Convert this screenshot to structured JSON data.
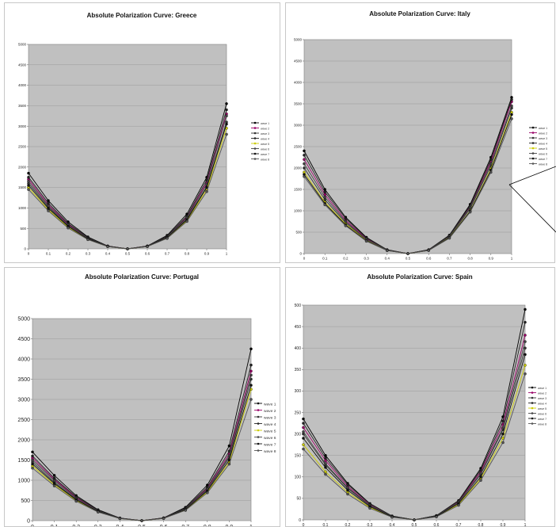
{
  "chart_data": [
    {
      "type": "line",
      "title": "Absolute Polarization Curve: Greece",
      "xlabel": "",
      "ylabel": "",
      "xlim": [
        0,
        1
      ],
      "ylim": [
        0,
        5000
      ],
      "x_ticks": [
        "0",
        "0.1",
        "0.2",
        "0.3",
        "0.4",
        "0.5",
        "0.6",
        "0.7",
        "0.8",
        "0.9",
        "1"
      ],
      "y_ticks": [
        "0",
        "500",
        "1000",
        "1500",
        "2000",
        "2500",
        "3000",
        "3500",
        "4000",
        "4500",
        "5000"
      ],
      "grid": true,
      "legend_position": "right",
      "x": [
        0,
        0.1,
        0.2,
        0.3,
        0.4,
        0.5,
        0.6,
        0.7,
        0.8,
        0.9,
        1
      ],
      "series": [
        {
          "name": "wave 1",
          "values": [
            1850,
            1180,
            660,
            290,
            70,
            0,
            70,
            330,
            850,
            1750,
            3550
          ],
          "color": "#000000"
        },
        {
          "name": "wave 2",
          "values": [
            1700,
            1080,
            600,
            260,
            65,
            0,
            65,
            300,
            780,
            1620,
            3300
          ],
          "color": "#990066"
        },
        {
          "name": "wave 3",
          "values": [
            1600,
            1020,
            560,
            245,
            60,
            0,
            60,
            280,
            730,
            1520,
            3100
          ],
          "color": "#333333"
        },
        {
          "name": "wave 4",
          "values": [
            1750,
            1120,
            620,
            275,
            68,
            0,
            68,
            310,
            800,
            1680,
            3400
          ],
          "color": "#222222"
        },
        {
          "name": "wave 5",
          "values": [
            1500,
            960,
            530,
            230,
            56,
            0,
            56,
            265,
            690,
            1450,
            2950
          ],
          "color": "#cccc00"
        },
        {
          "name": "wave 6",
          "values": [
            1650,
            1050,
            580,
            255,
            62,
            0,
            62,
            290,
            760,
            1580,
            3250
          ],
          "color": "#444444"
        },
        {
          "name": "wave 7",
          "values": [
            1550,
            990,
            550,
            240,
            58,
            0,
            58,
            275,
            710,
            1500,
            3050
          ],
          "color": "#111111"
        },
        {
          "name": "wave 8",
          "values": [
            1450,
            930,
            510,
            225,
            54,
            0,
            54,
            255,
            670,
            1400,
            2800
          ],
          "color": "#555555"
        }
      ]
    },
    {
      "type": "line",
      "title": "Absolute Polarization Curve: Italy",
      "xlabel": "",
      "ylabel": "",
      "xlim": [
        0,
        1
      ],
      "ylim": [
        0,
        5000
      ],
      "x_ticks": [
        "0",
        "0.1",
        "0.2",
        "0.3",
        "0.4",
        "0.5",
        "0.6",
        "0.7",
        "0.8",
        "0.9",
        "1"
      ],
      "y_ticks": [
        "0",
        "500",
        "1000",
        "1500",
        "2000",
        "2500",
        "3000",
        "3500",
        "4000",
        "4500",
        "5000"
      ],
      "grid": true,
      "legend_position": "right",
      "x": [
        0,
        0.1,
        0.2,
        0.3,
        0.4,
        0.5,
        0.6,
        0.7,
        0.8,
        0.9,
        1
      ],
      "series": [
        {
          "name": "wave 1",
          "values": [
            2400,
            1500,
            850,
            380,
            90,
            0,
            90,
            430,
            1150,
            2250,
            3650
          ],
          "color": "#000000"
        },
        {
          "name": "wave 2",
          "values": [
            2200,
            1380,
            780,
            350,
            85,
            0,
            85,
            410,
            1100,
            2150,
            3550
          ],
          "color": "#990066"
        },
        {
          "name": "wave 3",
          "values": [
            2000,
            1260,
            720,
            320,
            78,
            0,
            80,
            390,
            1050,
            2050,
            3400
          ],
          "color": "#333333"
        },
        {
          "name": "wave 4",
          "values": [
            2300,
            1440,
            820,
            365,
            88,
            0,
            88,
            420,
            1120,
            2200,
            3600
          ],
          "color": "#222222"
        },
        {
          "name": "wave 5",
          "values": [
            1900,
            1200,
            690,
            305,
            74,
            0,
            76,
            375,
            1000,
            1980,
            3300
          ],
          "color": "#cccc00"
        },
        {
          "name": "wave 6",
          "values": [
            2100,
            1320,
            750,
            335,
            82,
            0,
            82,
            400,
            1080,
            2100,
            3450
          ],
          "color": "#444444"
        },
        {
          "name": "wave 7",
          "values": [
            1850,
            1170,
            670,
            300,
            72,
            0,
            74,
            370,
            990,
            1950,
            3250
          ],
          "color": "#111111"
        },
        {
          "name": "wave 8",
          "values": [
            1800,
            1140,
            650,
            290,
            70,
            0,
            72,
            360,
            970,
            1900,
            3150
          ],
          "color": "#555555"
        }
      ]
    },
    {
      "type": "line",
      "title": "Absolute Polarization Curve: Portugal",
      "xlabel": "",
      "ylabel": "",
      "xlim": [
        0,
        1
      ],
      "ylim": [
        0,
        5000
      ],
      "x_ticks": [
        "0",
        "0.1",
        "0.2",
        "0.3",
        "0.4",
        "0.5",
        "0.6",
        "0.7",
        "0.8",
        "0.9",
        "1"
      ],
      "y_ticks": [
        "0",
        "500",
        "1000",
        "1500",
        "2000",
        "2500",
        "3000",
        "3500",
        "4000",
        "4500",
        "5000"
      ],
      "grid": true,
      "legend_position": "right",
      "x": [
        0,
        0.1,
        0.2,
        0.3,
        0.4,
        0.5,
        0.6,
        0.7,
        0.8,
        0.9,
        1
      ],
      "series": [
        {
          "name": "wave 1",
          "values": [
            1700,
            1120,
            620,
            270,
            65,
            0,
            70,
            330,
            880,
            1850,
            4250
          ],
          "color": "#000000"
        },
        {
          "name": "wave 2",
          "values": [
            1550,
            1020,
            570,
            250,
            60,
            0,
            64,
            300,
            800,
            1650,
            3700
          ],
          "color": "#990066"
        },
        {
          "name": "wave 3",
          "values": [
            1450,
            950,
            530,
            235,
            56,
            0,
            60,
            285,
            760,
            1560,
            3500
          ],
          "color": "#333333"
        },
        {
          "name": "wave 4",
          "values": [
            1600,
            1050,
            590,
            258,
            62,
            0,
            66,
            310,
            830,
            1720,
            3850
          ],
          "color": "#222222"
        },
        {
          "name": "wave 5",
          "values": [
            1350,
            890,
            500,
            220,
            52,
            0,
            56,
            265,
            710,
            1450,
            3250
          ],
          "color": "#cccc00"
        },
        {
          "name": "wave 6",
          "values": [
            1500,
            990,
            550,
            242,
            58,
            0,
            62,
            292,
            780,
            1600,
            3600
          ],
          "color": "#444444"
        },
        {
          "name": "wave 7",
          "values": [
            1400,
            920,
            515,
            228,
            54,
            0,
            58,
            275,
            735,
            1500,
            3350
          ],
          "color": "#111111"
        },
        {
          "name": "wave 8",
          "values": [
            1300,
            860,
            480,
            212,
            50,
            0,
            54,
            255,
            690,
            1400,
            3000
          ],
          "color": "#555555"
        }
      ]
    },
    {
      "type": "line",
      "title": "Absolute Polarization Curve: Spain",
      "xlabel": "",
      "ylabel": "",
      "xlim": [
        0,
        1
      ],
      "ylim": [
        0,
        500
      ],
      "x_ticks": [
        "0",
        "0.1",
        "0.2",
        "0.3",
        "0.4",
        "0.5",
        "0.6",
        "0.7",
        "0.8",
        "0.9",
        "1"
      ],
      "y_ticks": [
        "0",
        "50",
        "100",
        "150",
        "200",
        "250",
        "300",
        "350",
        "400",
        "450",
        "500"
      ],
      "grid": true,
      "legend_position": "right",
      "x": [
        0,
        0.1,
        0.2,
        0.3,
        0.4,
        0.5,
        0.6,
        0.7,
        0.8,
        0.9,
        1
      ],
      "series": [
        {
          "name": "wave 1",
          "values": [
            235,
            150,
            85,
            38,
            9,
            0,
            10,
            45,
            120,
            240,
            490
          ],
          "color": "#000000"
        },
        {
          "name": "wave 2",
          "values": [
            215,
            138,
            78,
            35,
            8,
            0,
            9,
            42,
            112,
            222,
            430
          ],
          "color": "#990066"
        },
        {
          "name": "wave 3",
          "values": [
            200,
            128,
            73,
            33,
            8,
            0,
            9,
            40,
            106,
            210,
            400
          ],
          "color": "#333333"
        },
        {
          "name": "wave 4",
          "values": [
            225,
            144,
            82,
            37,
            9,
            0,
            10,
            44,
            116,
            230,
            460
          ],
          "color": "#222222"
        },
        {
          "name": "wave 5",
          "values": [
            175,
            112,
            64,
            29,
            7,
            0,
            8,
            36,
            96,
            190,
            360
          ],
          "color": "#cccc00"
        },
        {
          "name": "wave 6",
          "values": [
            205,
            131,
            75,
            34,
            8,
            0,
            9,
            41,
            108,
            214,
            415
          ],
          "color": "#444444"
        },
        {
          "name": "wave 7",
          "values": [
            190,
            122,
            69,
            31,
            7,
            0,
            8,
            38,
            100,
            200,
            385
          ],
          "color": "#111111"
        },
        {
          "name": "wave 8",
          "values": [
            165,
            106,
            60,
            27,
            6,
            0,
            7,
            34,
            92,
            180,
            340
          ],
          "color": "#555555"
        }
      ]
    }
  ],
  "annotations": {
    "callout_line_color": "#000000"
  }
}
